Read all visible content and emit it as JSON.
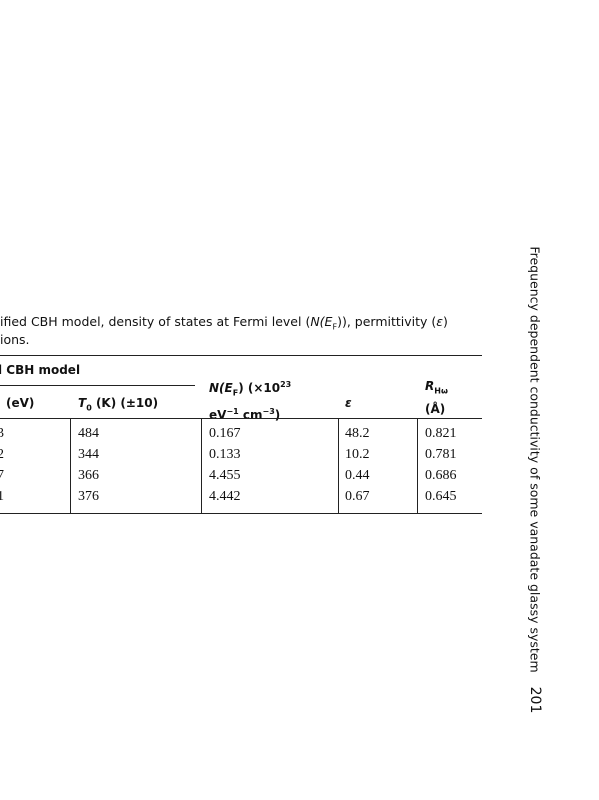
{
  "caption": {
    "line1": [
      "ified CBH model, density of states at Fermi level (",
      "N(E",
      "F",
      ")), permittivity (",
      "ε",
      ")"
    ],
    "line2": "ions."
  },
  "table": {
    "group_header": "l CBH model",
    "columns": [
      [
        "(eV)"
      ],
      [
        "T",
        "0",
        " (K) (±10)"
      ],
      [
        "N(E",
        "F",
        ") (×10",
        "23",
        "eV",
        "−1",
        " cm",
        "−3",
        ")"
      ],
      [
        "ε"
      ],
      [
        "R",
        "Hω",
        "(Å)"
      ]
    ],
    "rows": [
      [
        "3",
        "484",
        "0.167",
        "48.2",
        "0.821"
      ],
      [
        "2",
        "344",
        "0.133",
        "10.2",
        "0.781"
      ],
      [
        "7",
        "366",
        "4.455",
        "0.44",
        "0.686"
      ],
      [
        "1",
        "376",
        "4.442",
        "0.67",
        "0.645"
      ]
    ]
  },
  "running_head": "Frequency dependent conductivity of some vanadate glassy system",
  "page_number": "201"
}
